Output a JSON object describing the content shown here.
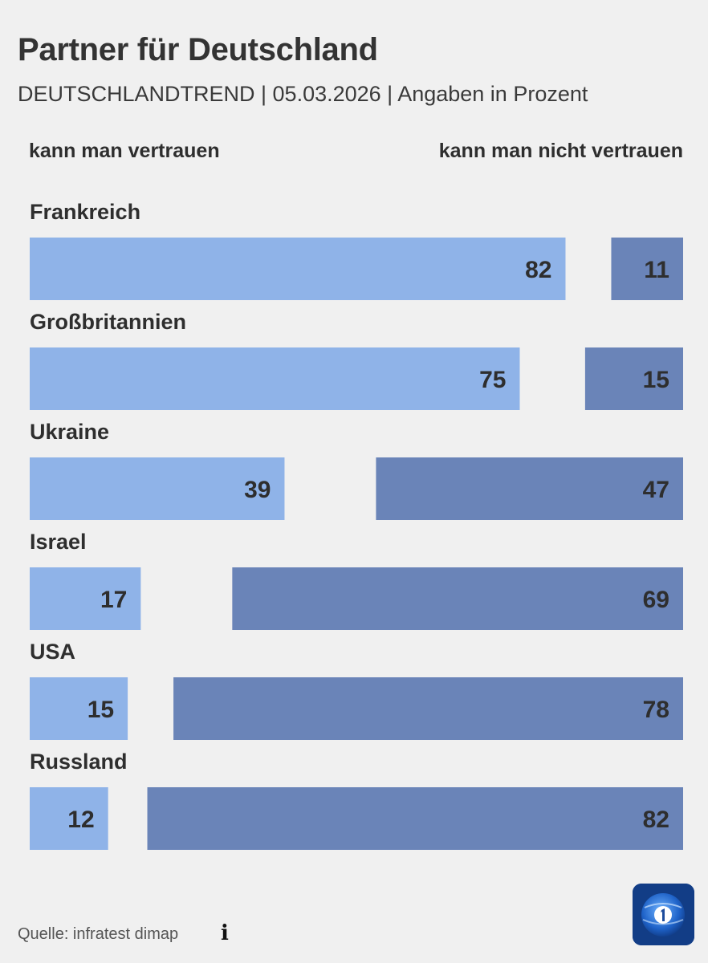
{
  "header": {
    "title": "Partner für Deutschland",
    "subtitle": "DEUTSCHLANDTREND | 05.03.2026 | Angaben in Prozent"
  },
  "chart_data": {
    "type": "bar",
    "orientation": "horizontal-diverging",
    "categories": [
      "Frankreich",
      "Großbritannien",
      "Ukraine",
      "Israel",
      "USA",
      "Russland"
    ],
    "series": [
      {
        "name": "kann man vertrauen",
        "values": [
          82,
          75,
          39,
          17,
          15,
          12
        ],
        "color": "#8fb3e8"
      },
      {
        "name": "kann man nicht vertrauen",
        "values": [
          11,
          15,
          47,
          69,
          78,
          82
        ],
        "color": "#6a84b8"
      }
    ],
    "unit": "Prozent",
    "xlim": [
      0,
      100
    ]
  },
  "footer": {
    "source": "Quelle: infratest dimap",
    "info_icon": "info-icon",
    "logo": "tagesschau-logo"
  }
}
